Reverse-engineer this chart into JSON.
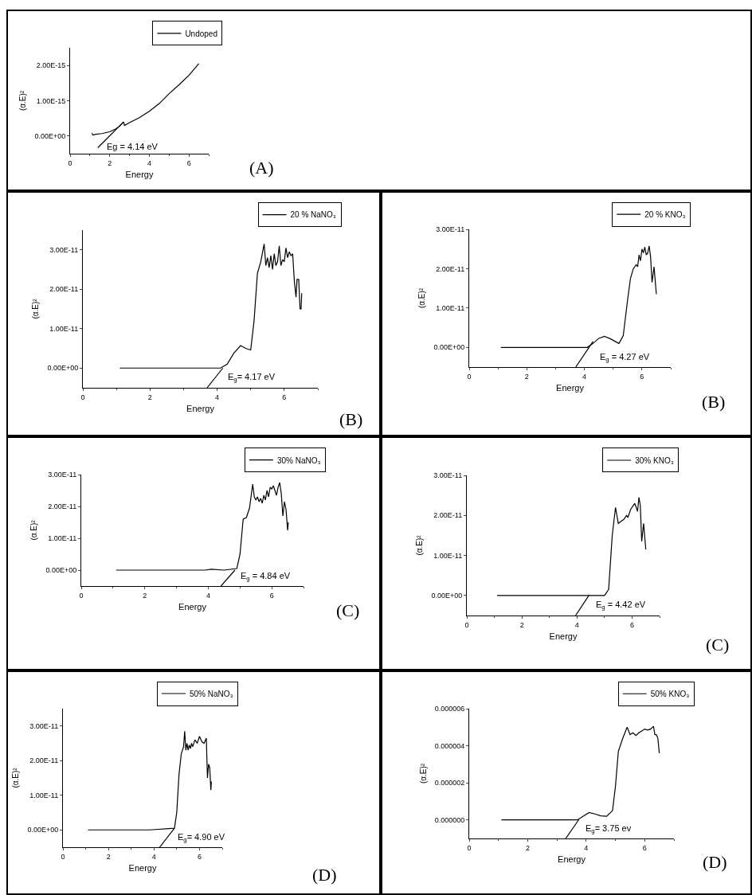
{
  "chart_data": [
    {
      "type": "line",
      "xlabel": "Energy",
      "ylabel": "(α.E)²",
      "legend": "top right",
      "xlim": [
        0,
        7
      ],
      "xticks": [
        0,
        2,
        4,
        6
      ],
      "ylim": [
        -5e-16,
        2.5e-15
      ],
      "yticks": [
        {
          "value": 0,
          "label": "0.00E+00"
        },
        {
          "value": 1e-15,
          "label": "1.00E-15"
        },
        {
          "value": 2e-15,
          "label": "2.00E-15"
        }
      ],
      "annotations": [
        "Eg = 4.14 eV",
        "(A)"
      ],
      "series": [
        {
          "name": "Undoped",
          "color": "#000000",
          "x": [
            1.1,
            1.15,
            1.3,
            1.6,
            2.0,
            2.3,
            2.5,
            2.7,
            2.75,
            3.0,
            3.5,
            4.0,
            4.5,
            5.0,
            5.5,
            6.0,
            6.5
          ],
          "values": [
            8e-17,
            3e-17,
            5e-17,
            7e-17,
            1.2e-16,
            2e-16,
            2.8e-16,
            4e-16,
            3e-16,
            3.8e-16,
            5.2e-16,
            7e-16,
            9.2e-16,
            1.2e-15,
            1.45e-15,
            1.72e-15,
            2.05e-15
          ]
        },
        {
          "color": "#000000",
          "x": [
            1.4,
            2.7
          ],
          "values": [
            -3.3e-16,
            4e-16
          ]
        }
      ]
    },
    {
      "type": "line",
      "xlabel": "Energy",
      "ylabel": "(α.E)²",
      "legend": "top right",
      "xlim": [
        0,
        7
      ],
      "xticks": [
        0,
        2,
        4,
        6
      ],
      "ylim": [
        -5e-12,
        3.5e-11
      ],
      "yticks": [
        {
          "value": 0,
          "label": "0.00E+00"
        },
        {
          "value": 1e-11,
          "label": "1.00E-11"
        },
        {
          "value": 2e-11,
          "label": "2.00E-11"
        },
        {
          "value": 3e-11,
          "label": "3.00E-11"
        }
      ],
      "annotations": [
        "E$_{g}$= 4.17 eV",
        "(B)"
      ],
      "series": [
        {
          "name": "20 % NaNO₃",
          "color": "#000000",
          "x": [
            1.1,
            4.1,
            4.3,
            4.5,
            4.7,
            4.85,
            5.0,
            5.1,
            5.2,
            5.3,
            5.4,
            5.45,
            5.5,
            5.55,
            5.6,
            5.65,
            5.7,
            5.75,
            5.8,
            5.85,
            5.9,
            5.95,
            6.0,
            6.05,
            6.1,
            6.15,
            6.2,
            6.25,
            6.3,
            6.35,
            6.38,
            6.43,
            6.47,
            6.5,
            6.52
          ],
          "values": [
            0,
            0,
            1e-12,
            3.8e-12,
            5.7e-12,
            5e-12,
            4.6e-12,
            1.2e-11,
            2.4e-11,
            2.7e-11,
            3.15e-11,
            2.6e-11,
            2.8e-11,
            2.55e-11,
            2.85e-11,
            2.5e-11,
            2.9e-11,
            2.6e-11,
            2.7e-11,
            3.1e-11,
            2.6e-11,
            2.75e-11,
            2.7e-11,
            3.05e-11,
            2.8e-11,
            2.95e-11,
            2.85e-11,
            2.9e-11,
            2.2e-11,
            1.8e-11,
            2.25e-11,
            2.25e-11,
            1.5e-11,
            1.5e-11,
            1.9e-11
          ]
        },
        {
          "color": "#000000",
          "x": [
            3.7,
            4.17
          ],
          "values": [
            -5e-12,
            0
          ]
        }
      ]
    },
    {
      "type": "line",
      "xlabel": "Energy",
      "ylabel": "(α.E)²",
      "legend": "top right",
      "xlim": [
        0,
        7
      ],
      "xticks": [
        0,
        2,
        4,
        6
      ],
      "ylim": [
        -5e-12,
        3e-11
      ],
      "yticks": [
        {
          "value": 0,
          "label": "0.00E+00"
        },
        {
          "value": 1e-11,
          "label": "1.00E-11"
        },
        {
          "value": 2e-11,
          "label": "2.00E-11"
        },
        {
          "value": 3e-11,
          "label": "3.00E-11"
        }
      ],
      "annotations": [
        "E$_{g}$ = 4.27 eV",
        "(B)"
      ],
      "series": [
        {
          "name": "20 % KNO₃",
          "color": "#000000",
          "x": [
            1.1,
            4.1,
            4.3,
            4.5,
            4.7,
            4.9,
            5.2,
            5.35,
            5.5,
            5.6,
            5.7,
            5.8,
            5.85,
            5.9,
            5.95,
            6.0,
            6.05,
            6.1,
            6.15,
            6.2,
            6.25,
            6.3,
            6.35,
            6.42,
            6.5
          ],
          "values": [
            0,
            0,
            1e-12,
            2.3e-12,
            2.8e-12,
            2.2e-12,
            1e-12,
            3e-12,
            1.2e-11,
            1.75e-11,
            2e-11,
            2.1e-11,
            2.05e-11,
            2.35e-11,
            2.2e-11,
            2.5e-11,
            2.4e-11,
            2.55e-11,
            2.35e-11,
            2.4e-11,
            2.58e-11,
            2.3e-11,
            1.65e-11,
            2.05e-11,
            1.35e-11
          ]
        },
        {
          "color": "#000000",
          "x": [
            3.7,
            4.3
          ],
          "values": [
            -5e-12,
            1.5e-12
          ]
        }
      ]
    },
    {
      "type": "line",
      "xlabel": "Energy",
      "ylabel": "(α.E)²",
      "legend": "top right",
      "xlim": [
        0,
        7
      ],
      "xticks": [
        0,
        2,
        4,
        6
      ],
      "ylim": [
        -5e-12,
        3e-11
      ],
      "yticks": [
        {
          "value": 0,
          "label": "0.00E+00"
        },
        {
          "value": 1e-11,
          "label": "1.00E-11"
        },
        {
          "value": 2e-11,
          "label": "2.00E-11"
        },
        {
          "value": 3e-11,
          "label": "3.00E-11"
        }
      ],
      "annotations": [
        "E$_{g}$ = 4.84 eV",
        "(C)"
      ],
      "series": [
        {
          "name": "30% NaNO₃",
          "color": "#000000",
          "x": [
            1.1,
            3.9,
            4.1,
            4.5,
            4.9,
            5.0,
            5.1,
            5.2,
            5.3,
            5.4,
            5.45,
            5.5,
            5.55,
            5.6,
            5.65,
            5.7,
            5.75,
            5.8,
            5.85,
            5.9,
            5.95,
            6.0,
            6.05,
            6.1,
            6.15,
            6.2,
            6.25,
            6.3,
            6.35,
            6.4,
            6.45,
            6.5,
            6.52
          ],
          "values": [
            0,
            0,
            3e-13,
            0,
            5e-13,
            5e-12,
            1.6e-11,
            1.65e-11,
            1.95e-11,
            2.7e-11,
            2.3e-11,
            2.2e-11,
            2.3e-11,
            2.15e-11,
            2.25e-11,
            2.1e-11,
            2.35e-11,
            2.2e-11,
            2.5e-11,
            2.3e-11,
            2.6e-11,
            2.55e-11,
            2.65e-11,
            2.5e-11,
            2.35e-11,
            2.6e-11,
            2.75e-11,
            2.4e-11,
            1.7e-11,
            2.15e-11,
            1.9e-11,
            1.25e-11,
            1.5e-11
          ]
        },
        {
          "color": "#000000",
          "x": [
            4.4,
            4.84
          ],
          "values": [
            -5e-12,
            0
          ]
        }
      ]
    },
    {
      "type": "line",
      "xlabel": "Energy",
      "ylabel": "(α.E)²",
      "legend": "top right",
      "xlim": [
        0,
        7
      ],
      "xticks": [
        0,
        2,
        4,
        6
      ],
      "ylim": [
        -5e-12,
        3e-11
      ],
      "yticks": [
        {
          "value": 0,
          "label": "0.00E+00"
        },
        {
          "value": 1e-11,
          "label": "1.00E-11"
        },
        {
          "value": 2e-11,
          "label": "2.00E-11"
        },
        {
          "value": 3e-11,
          "label": "3.00E-11"
        }
      ],
      "annotations": [
        "E$_{g}$ = 4.42 eV",
        "(C)"
      ],
      "series": [
        {
          "name": "30% KNO₃",
          "color": "#000000",
          "x": [
            1.1,
            5.0,
            5.15,
            5.28,
            5.4,
            5.5,
            5.6,
            5.7,
            5.8,
            5.85,
            5.95,
            6.05,
            6.1,
            6.2,
            6.25,
            6.3,
            6.35,
            6.42,
            6.5
          ],
          "values": [
            0,
            0,
            1.5e-12,
            1.5e-11,
            2.2e-11,
            1.8e-11,
            1.85e-11,
            1.9e-11,
            2e-11,
            1.95e-11,
            2.15e-11,
            2.25e-11,
            2.3e-11,
            2.1e-11,
            2.45e-11,
            2.25e-11,
            1.35e-11,
            1.8e-11,
            1.15e-11
          ]
        },
        {
          "color": "#000000",
          "x": [
            3.95,
            4.45
          ],
          "values": [
            -5e-12,
            2e-13
          ]
        }
      ]
    },
    {
      "type": "line",
      "xlabel": "Energy",
      "ylabel": "(α.E)²",
      "legend": "top right",
      "xlim": [
        0,
        7
      ],
      "xticks": [
        0,
        2,
        4,
        6
      ],
      "ylim": [
        -5e-12,
        3.5e-11
      ],
      "yticks": [
        {
          "value": 0,
          "label": "0.00E+00"
        },
        {
          "value": 1e-11,
          "label": "1.00E-11"
        },
        {
          "value": 2e-11,
          "label": "2.00E-11"
        },
        {
          "value": 3e-11,
          "label": "3.00E-11"
        }
      ],
      "annotations": [
        "E$_{g}$= 4.90 eV",
        "(D)"
      ],
      "series": [
        {
          "name": "50% NaNO₃",
          "color": "#000000",
          "x": [
            1.1,
            3.8,
            4.9,
            5.0,
            5.1,
            5.2,
            5.3,
            5.35,
            5.4,
            5.45,
            5.5,
            5.55,
            5.6,
            5.65,
            5.7,
            5.8,
            5.9,
            6.0,
            6.1,
            6.2,
            6.3,
            6.35,
            6.4,
            6.45,
            6.5,
            6.52
          ],
          "values": [
            0,
            0,
            5e-13,
            5e-12,
            1.6e-11,
            2.2e-11,
            2.4e-11,
            2.85e-11,
            2.3e-11,
            2.5e-11,
            2.3e-11,
            2.45e-11,
            2.35e-11,
            2.5e-11,
            2.4e-11,
            2.6e-11,
            2.5e-11,
            2.7e-11,
            2.55e-11,
            2.5e-11,
            2.65e-11,
            1.5e-11,
            1.9e-11,
            1.8e-11,
            1.15e-11,
            1.4e-11
          ]
        },
        {
          "color": "#000000",
          "x": [
            4.25,
            4.9
          ],
          "values": [
            -5e-12,
            5e-13
          ]
        }
      ]
    },
    {
      "type": "line",
      "xlabel": "Energy",
      "ylabel": "(α.E)²",
      "legend": "top right",
      "xlim": [
        0,
        7
      ],
      "xticks": [
        0,
        2,
        4,
        6
      ],
      "ylim": [
        -1e-06,
        6e-06
      ],
      "yticks": [
        {
          "value": 0,
          "label": "0.000000"
        },
        {
          "value": 2e-06,
          "label": "0.000002"
        },
        {
          "value": 4e-06,
          "label": "0.000004"
        },
        {
          "value": 6e-06,
          "label": "0.000006"
        }
      ],
      "annotations": [
        "E$_{g}$= 3.75 ev",
        "(D)"
      ],
      "series": [
        {
          "name": "50% KNO₃",
          "color": "#000000",
          "x": [
            1.1,
            3.7,
            3.9,
            4.1,
            4.3,
            4.5,
            4.7,
            4.9,
            5.0,
            5.1,
            5.25,
            5.4,
            5.5,
            5.6,
            5.7,
            5.8,
            5.9,
            6.0,
            6.1,
            6.2,
            6.3,
            6.35,
            6.4,
            6.45,
            6.5
          ],
          "values": [
            0,
            0,
            2e-07,
            4e-07,
            3.2e-07,
            2.2e-07,
            2e-07,
            5e-07,
            1.8e-06,
            3.7e-06,
            4.4e-06,
            5e-06,
            4.6e-06,
            4.7e-06,
            4.55e-06,
            4.7e-06,
            4.8e-06,
            4.9e-06,
            4.85e-06,
            4.9e-06,
            5.05e-06,
            4.6e-06,
            4.6e-06,
            4.4e-06,
            3.6e-06
          ]
        },
        {
          "color": "#000000",
          "x": [
            3.3,
            3.75
          ],
          "values": [
            -1e-06,
            2e-08
          ]
        }
      ]
    }
  ]
}
